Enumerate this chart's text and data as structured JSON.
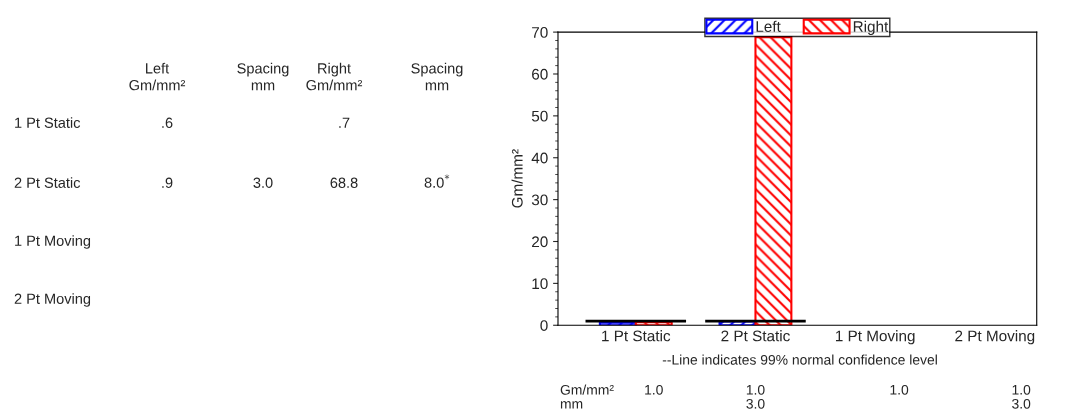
{
  "chart_data": {
    "type": "bar",
    "categories": [
      "1 Pt Static",
      "2 Pt Static",
      "1 Pt Moving",
      "2 Pt Moving"
    ],
    "ylabel": "Gm/mm²",
    "series": [
      {
        "name": "Left",
        "color": "#0000ff",
        "values": [
          0.6,
          0.9,
          null,
          null
        ]
      },
      {
        "name": "Right",
        "color": "#ff0000",
        "values": [
          0.7,
          68.8,
          null,
          null
        ]
      }
    ],
    "ref_lines": [
      {
        "axis": "y",
        "value": 1.0,
        "color": "#000000"
      }
    ],
    "ylim": [
      0,
      70
    ],
    "yticks": [
      0,
      10,
      20,
      30,
      40,
      50,
      60,
      70
    ],
    "legend": "top",
    "grid": false,
    "annotations": [
      "Left\nGm/mm²",
      "Spacing\nmm",
      "Right\nGm/mm²",
      "Spacing\nmm",
      "3.0",
      "8.0$^{*}$",
      "--Line indicates 99% normal confidence level",
      "Gm/mm²",
      "mm",
      "1.0",
      "1.0",
      "1.0",
      "1.0",
      "3.0",
      "3.0",
      ".6",
      ".9",
      ".7",
      "68.8"
    ]
  }
}
